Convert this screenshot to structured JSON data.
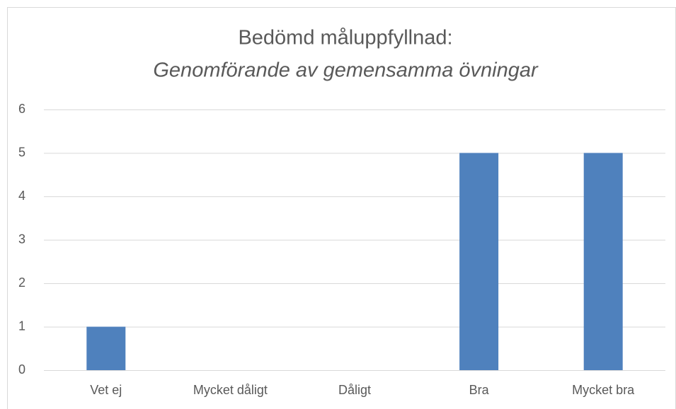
{
  "chart_data": {
    "type": "bar",
    "title": "Bedömd måluppfyllnad:",
    "subtitle": "Genomförande av gemensamma övningar",
    "categories": [
      "Vet ej",
      "Mycket dåligt",
      "Dåligt",
      "Bra",
      "Mycket bra"
    ],
    "values": [
      1,
      0,
      0,
      5,
      5
    ],
    "color": "#4f81bd",
    "ylim": [
      0,
      6
    ],
    "yticks": [
      0,
      1,
      2,
      3,
      4,
      5,
      6
    ],
    "grid": true
  }
}
